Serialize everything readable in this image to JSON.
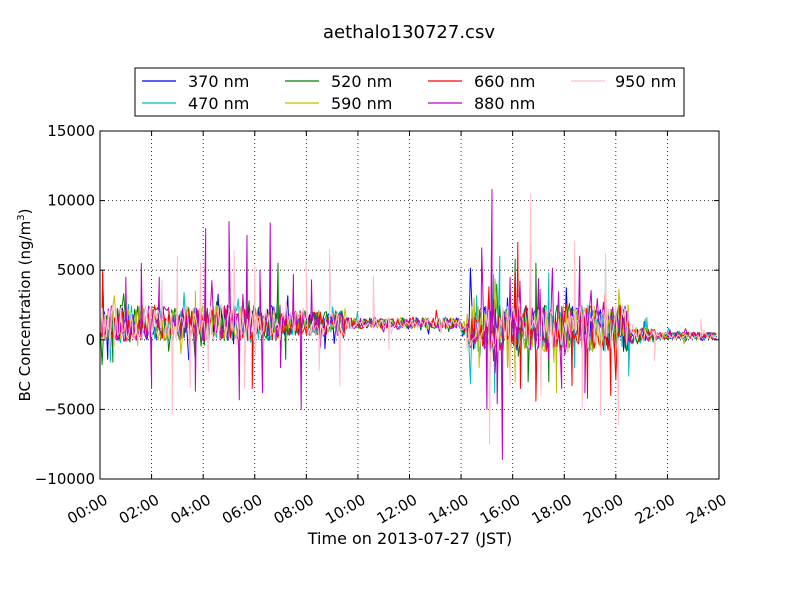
{
  "chart_data": {
    "type": "line",
    "title": "aethalo130727.csv",
    "xlabel": "Time on 2013-07-27 (JST)",
    "ylabel_main": "BC Concentration (ng/m",
    "ylabel_sup": "3",
    "ylabel_close": ")",
    "xlim": [
      0,
      24
    ],
    "ylim": [
      -10000,
      15000
    ],
    "x_ticks": [
      0,
      2,
      4,
      6,
      8,
      10,
      12,
      14,
      16,
      18,
      20,
      22,
      24
    ],
    "x_tick_labels": [
      "00:00",
      "02:00",
      "04:00",
      "06:00",
      "08:00",
      "10:00",
      "12:00",
      "14:00",
      "16:00",
      "18:00",
      "20:00",
      "22:00",
      "24:00"
    ],
    "y_ticks": [
      -10000,
      -5000,
      0,
      5000,
      10000,
      15000
    ],
    "y_tick_labels": [
      "−10000",
      "−5000",
      "0",
      "5000",
      "10000",
      "15000"
    ],
    "grid": true,
    "legend_placement": "top-center",
    "series": [
      {
        "name": "370 nm",
        "color": "#0000ff",
        "seed": 11,
        "x_end": 23.9
      },
      {
        "name": "470 nm",
        "color": "#00bfbf",
        "seed": 23,
        "x_end": 23.9
      },
      {
        "name": "520 nm",
        "color": "#008000",
        "seed": 37,
        "x_end": 23.9
      },
      {
        "name": "590 nm",
        "color": "#bfbf00",
        "seed": 41,
        "x_end": 23.9
      },
      {
        "name": "660 nm",
        "color": "#ff0000",
        "seed": 53,
        "x_end": 23.9
      },
      {
        "name": "880 nm",
        "color": "#bf00bf",
        "seed": 67,
        "x_end": 23.9
      },
      {
        "name": "950 nm",
        "color": "#ffc0cb",
        "seed": 79,
        "x_end": 23.9
      }
    ],
    "anchors": {
      "370 nm": [
        [
          0.1,
          4800
        ],
        [
          0.3,
          -1400
        ],
        [
          7.3,
          1900
        ],
        [
          8.7,
          1500
        ],
        [
          19.7,
          -600
        ],
        [
          20.4,
          -600
        ],
        [
          21.1,
          1300
        ],
        [
          22.7,
          -100
        ],
        [
          23.6,
          500
        ]
      ],
      "470 nm": [
        [
          0.4,
          -1600
        ],
        [
          6.6,
          4300
        ],
        [
          15.3,
          -3800
        ],
        [
          15.5,
          6000
        ],
        [
          15.6,
          -3500
        ],
        [
          17.4,
          4800
        ],
        [
          18.4,
          -2000
        ],
        [
          19.6,
          5900
        ],
        [
          19.8,
          -800
        ],
        [
          20.5,
          -2600
        ],
        [
          21.2,
          1600
        ]
      ],
      "520 nm": [
        [
          0.5,
          -1600
        ],
        [
          6.9,
          5500
        ],
        [
          7.2,
          -1400
        ],
        [
          16.1,
          5800
        ],
        [
          16.6,
          -3000
        ],
        [
          16.9,
          5500
        ],
        [
          17.4,
          -3000
        ],
        [
          18.8,
          1500
        ],
        [
          19.4,
          -2000
        ]
      ],
      "590 nm": [
        [
          3.7,
          3500
        ],
        [
          14.5,
          3000
        ],
        [
          14.7,
          -2000
        ],
        [
          15.8,
          -2000
        ],
        [
          16.1,
          -3000
        ],
        [
          17.7,
          -3800
        ],
        [
          20.0,
          -2700
        ],
        [
          20.2,
          1400
        ]
      ],
      "660 nm": [
        [
          0.1,
          5000
        ],
        [
          5.9,
          -3500
        ],
        [
          16.2,
          7000
        ],
        [
          16.3,
          -3500
        ],
        [
          16.7,
          6800
        ],
        [
          16.9,
          -4400
        ],
        [
          18.3,
          -3300
        ],
        [
          18.9,
          -4200
        ],
        [
          19.8,
          -4000
        ]
      ],
      "880 nm": [
        [
          1.0,
          4500
        ],
        [
          1.6,
          5500
        ],
        [
          2.0,
          -3500
        ],
        [
          2.3,
          4500
        ],
        [
          3.7,
          -3700
        ],
        [
          4.1,
          8000
        ],
        [
          5.0,
          8500
        ],
        [
          5.4,
          -4300
        ],
        [
          5.7,
          7500
        ],
        [
          6.2,
          5000
        ],
        [
          6.3,
          -3800
        ],
        [
          6.6,
          8400
        ],
        [
          7.0,
          -2000
        ],
        [
          7.5,
          4700
        ],
        [
          7.8,
          -5000
        ],
        [
          8.2,
          4300
        ],
        [
          14.8,
          6600
        ],
        [
          15.0,
          -5000
        ],
        [
          15.2,
          10800
        ],
        [
          15.4,
          -4600
        ],
        [
          15.6,
          -8600
        ],
        [
          15.9,
          4500
        ],
        [
          17.0,
          4400
        ],
        [
          17.4,
          -1400
        ],
        [
          17.9,
          -3500
        ],
        [
          18.6,
          6000
        ],
        [
          18.8,
          -3800
        ]
      ],
      "950 nm": [
        [
          2.4,
          4300
        ],
        [
          2.8,
          -5400
        ],
        [
          3.0,
          6000
        ],
        [
          3.5,
          -3400
        ],
        [
          3.9,
          5500
        ],
        [
          4.2,
          -2300
        ],
        [
          5.2,
          6400
        ],
        [
          5.6,
          -3500
        ],
        [
          6.0,
          5200
        ],
        [
          8.0,
          5500
        ],
        [
          8.5,
          -2200
        ],
        [
          8.9,
          6500
        ],
        [
          9.3,
          -3300
        ],
        [
          10.6,
          4600
        ],
        [
          11.2,
          -700
        ],
        [
          15.1,
          -7500
        ],
        [
          15.9,
          -3300
        ],
        [
          16.7,
          10500
        ],
        [
          17.1,
          -4000
        ],
        [
          18.4,
          7100
        ],
        [
          18.7,
          -5000
        ],
        [
          19.4,
          -5400
        ],
        [
          19.6,
          6200
        ],
        [
          20.1,
          -6100
        ],
        [
          21.5,
          -1500
        ],
        [
          23.3,
          1500
        ]
      ]
    }
  }
}
